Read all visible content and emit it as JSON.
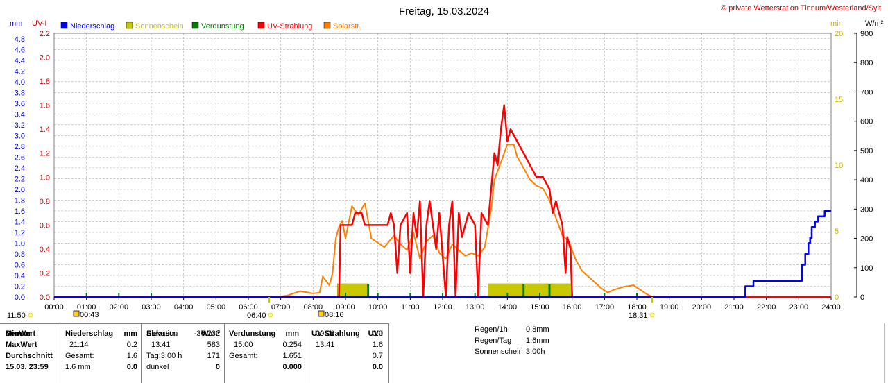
{
  "header": {
    "title": "Freitag, 15.03.2024",
    "copyright": "© private Wetterstation Tinnum/Westerland/Sylt",
    "unit_mm": "mm",
    "unit_uvi": "UV-I",
    "unit_min": "min",
    "unit_wm2": "W/m²"
  },
  "legend": [
    {
      "label": "Niederschlag",
      "color": "#0000ff"
    },
    {
      "label": "Sonnenschein",
      "color": "#c8c800"
    },
    {
      "label": "Verdunstung",
      "color": "#008000"
    },
    {
      "label": "UV-Strahlung",
      "color": "#ff0000"
    },
    {
      "label": "Solarstr.",
      "color": "#ff8000"
    }
  ],
  "colors": {
    "mm": "#0000cc",
    "uvi": "#cc0000",
    "min": "#c8b400",
    "wm2": "#000000",
    "grid": "#c0c0c0"
  },
  "markers": {
    "moonrise": "11:50",
    "sunrise_icon": "00:43",
    "dawn": "06:40",
    "sunrise": "08:16",
    "sunset": "18:31"
  },
  "chart_data": {
    "type": "line",
    "title": "Freitag, 15.03.2024",
    "x_ticks": [
      "00:00",
      "01:00",
      "02:00",
      "03:00",
      "04:00",
      "05:00",
      "06:00",
      "07:00",
      "08:00",
      "09:00",
      "10:00",
      "11:00",
      "12:00",
      "13:00",
      "14:00",
      "15:00",
      "16:00",
      "17:00",
      "18:00",
      "19:00",
      "20:00",
      "21:00",
      "22:00",
      "23:00",
      "24:00"
    ],
    "axes": {
      "mm": {
        "range": [
          0,
          4.9
        ],
        "ticks": [
          "0.0",
          "0.2",
          "0.4",
          "0.6",
          "0.8",
          "1.0",
          "1.2",
          "1.4",
          "1.6",
          "1.8",
          "2.0",
          "2.2",
          "2.4",
          "2.6",
          "2.8",
          "3.0",
          "3.2",
          "3.4",
          "3.6",
          "3.8",
          "4.0",
          "4.2",
          "4.4",
          "4.6",
          "4.8"
        ]
      },
      "uvi": {
        "range": [
          0,
          2.2
        ],
        "ticks": [
          "0.0",
          "0.2",
          "0.4",
          "0.6",
          "0.8",
          "1.0",
          "1.2",
          "1.4",
          "1.6",
          "1.8",
          "2.0",
          "2.2"
        ]
      },
      "min": {
        "range": [
          0,
          20
        ],
        "ticks": [
          "0",
          "5",
          "10",
          "15",
          "20"
        ]
      },
      "wm2": {
        "range": [
          0,
          900
        ],
        "ticks": [
          "0",
          "100",
          "200",
          "300",
          "400",
          "500",
          "600",
          "700",
          "800",
          "900"
        ]
      }
    },
    "series": [
      {
        "name": "Niederschlag",
        "axis": "mm",
        "step": true,
        "points": [
          [
            0,
            0
          ],
          [
            21.25,
            0
          ],
          [
            21.35,
            0.2
          ],
          [
            21.5,
            0.2
          ],
          [
            21.6,
            0.3
          ],
          [
            22,
            0.3
          ],
          [
            22.5,
            0.3
          ],
          [
            23,
            0.3
          ],
          [
            23.1,
            0.6
          ],
          [
            23.2,
            0.8
          ],
          [
            23.3,
            1.0
          ],
          [
            23.35,
            1.1
          ],
          [
            23.4,
            1.3
          ],
          [
            23.5,
            1.4
          ],
          [
            23.6,
            1.5
          ],
          [
            23.8,
            1.6
          ],
          [
            24,
            1.6
          ]
        ]
      },
      {
        "name": "Sonnenschein",
        "axis": "min",
        "bars": true,
        "intervals": [
          [
            8.75,
            9.67,
            1.0
          ],
          [
            13.4,
            16.0,
            1.0
          ]
        ]
      },
      {
        "name": "Verdunstung",
        "axis": "mm",
        "ticks": [
          1,
          2,
          3,
          9,
          10,
          11,
          12,
          13,
          14,
          15,
          16,
          17,
          18
        ]
      },
      {
        "name": "UV-Strahlung",
        "axis": "uvi",
        "points": [
          [
            0,
            0
          ],
          [
            8.8,
            0
          ],
          [
            8.85,
            0.6
          ],
          [
            9.2,
            0.6
          ],
          [
            9.3,
            0.7
          ],
          [
            9.5,
            0.7
          ],
          [
            9.6,
            0.6
          ],
          [
            10.3,
            0.6
          ],
          [
            10.4,
            0.7
          ],
          [
            10.5,
            0.6
          ],
          [
            10.6,
            0.2
          ],
          [
            10.7,
            0.6
          ],
          [
            10.9,
            0.7
          ],
          [
            11.0,
            0.2
          ],
          [
            11.1,
            0.7
          ],
          [
            11.2,
            0.5
          ],
          [
            11.3,
            0.8
          ],
          [
            11.4,
            0.0
          ],
          [
            11.5,
            0.6
          ],
          [
            11.6,
            0.8
          ],
          [
            11.8,
            0.4
          ],
          [
            11.9,
            0.7
          ],
          [
            12.1,
            0.0
          ],
          [
            12.2,
            0.6
          ],
          [
            12.3,
            0.8
          ],
          [
            12.4,
            0.0
          ],
          [
            12.5,
            0.7
          ],
          [
            12.6,
            0.5
          ],
          [
            12.8,
            0.7
          ],
          [
            13.0,
            0.6
          ],
          [
            13.1,
            0.0
          ],
          [
            13.2,
            0.7
          ],
          [
            13.4,
            0.6
          ],
          [
            13.5,
            0.9
          ],
          [
            13.6,
            1.2
          ],
          [
            13.7,
            1.1
          ],
          [
            13.8,
            1.4
          ],
          [
            13.9,
            1.6
          ],
          [
            14.0,
            1.3
          ],
          [
            14.1,
            1.4
          ],
          [
            14.3,
            1.3
          ],
          [
            14.5,
            1.2
          ],
          [
            14.7,
            1.1
          ],
          [
            14.9,
            1.0
          ],
          [
            15.1,
            1.0
          ],
          [
            15.3,
            0.9
          ],
          [
            15.4,
            0.7
          ],
          [
            15.5,
            0.8
          ],
          [
            15.6,
            0.7
          ],
          [
            15.7,
            0.6
          ],
          [
            15.8,
            0.2
          ],
          [
            15.85,
            0.5
          ],
          [
            15.95,
            0.4
          ],
          [
            16.0,
            0.0
          ],
          [
            24,
            0
          ]
        ]
      },
      {
        "name": "Solarstr.",
        "axis": "wm2",
        "points": [
          [
            0,
            0
          ],
          [
            6.9,
            0
          ],
          [
            7.2,
            5
          ],
          [
            7.6,
            20
          ],
          [
            8.0,
            12
          ],
          [
            8.2,
            15
          ],
          [
            8.3,
            70
          ],
          [
            8.5,
            40
          ],
          [
            8.6,
            80
          ],
          [
            8.7,
            200
          ],
          [
            8.8,
            240
          ],
          [
            8.9,
            260
          ],
          [
            9.0,
            200
          ],
          [
            9.2,
            310
          ],
          [
            9.4,
            280
          ],
          [
            9.5,
            300
          ],
          [
            9.6,
            320
          ],
          [
            9.8,
            200
          ],
          [
            10.0,
            185
          ],
          [
            10.2,
            170
          ],
          [
            10.5,
            210
          ],
          [
            10.7,
            180
          ],
          [
            10.9,
            160
          ],
          [
            11.1,
            220
          ],
          [
            11.3,
            130
          ],
          [
            11.5,
            190
          ],
          [
            11.7,
            210
          ],
          [
            11.9,
            150
          ],
          [
            12.1,
            130
          ],
          [
            12.3,
            180
          ],
          [
            12.5,
            160
          ],
          [
            12.7,
            140
          ],
          [
            12.9,
            150
          ],
          [
            13.1,
            140
          ],
          [
            13.3,
            170
          ],
          [
            13.5,
            300
          ],
          [
            13.6,
            400
          ],
          [
            13.8,
            460
          ],
          [
            14.0,
            520
          ],
          [
            14.2,
            520
          ],
          [
            14.3,
            480
          ],
          [
            14.5,
            440
          ],
          [
            14.7,
            400
          ],
          [
            14.9,
            380
          ],
          [
            15.1,
            370
          ],
          [
            15.3,
            330
          ],
          [
            15.5,
            270
          ],
          [
            15.7,
            210
          ],
          [
            15.9,
            190
          ],
          [
            16.1,
            130
          ],
          [
            16.3,
            90
          ],
          [
            16.6,
            60
          ],
          [
            16.9,
            30
          ],
          [
            17.1,
            15
          ],
          [
            17.3,
            25
          ],
          [
            17.6,
            35
          ],
          [
            17.9,
            40
          ],
          [
            18.1,
            25
          ],
          [
            18.3,
            10
          ],
          [
            18.5,
            0
          ],
          [
            24,
            0
          ]
        ]
      }
    ]
  },
  "stats": {
    "sensor": {
      "header": "Sensor",
      "rows": [
        "MinWert",
        "MaxWert",
        "Durchschnitt",
        "15.03. 23:59"
      ]
    },
    "niederschlag": {
      "header": "Niederschlag",
      "unit": "mm",
      "rows": [
        [
          "",
          ""
        ],
        [
          "21:14",
          "0.2"
        ],
        [
          "Gesamt:",
          "1.6"
        ],
        [
          "1.6 mm",
          "0.0"
        ]
      ]
    },
    "solar": {
      "header": "Solarstr.",
      "unit": "W/m²",
      "rows": [
        [
          "Elevation",
          "-36.232"
        ],
        [
          "13:41",
          "583"
        ],
        [
          "Tag:3:00 h",
          "171"
        ],
        [
          "dunkel",
          "0"
        ]
      ]
    },
    "verdunstung": {
      "header": "Verdunstung",
      "unit": "mm",
      "rows": [
        [
          "",
          ""
        ],
        [
          "15:00",
          "0.254"
        ],
        [
          "Gesamt:",
          "1.651"
        ],
        [
          "",
          "0.000"
        ]
      ]
    },
    "uv": {
      "header": "UV-Strahlung",
      "unit": "UV-I",
      "rows": [
        [
          "00:00",
          "0.0"
        ],
        [
          "13:41",
          "1.6"
        ],
        [
          "",
          "0.7"
        ],
        [
          "",
          "0.0"
        ]
      ]
    },
    "extra": [
      {
        "label": "Regen/1h",
        "value": "0.8mm"
      },
      {
        "label": "Regen/Tag",
        "value": "1.6mm"
      },
      {
        "label": "Sonnenschein",
        "value": "3:00h"
      }
    ]
  }
}
